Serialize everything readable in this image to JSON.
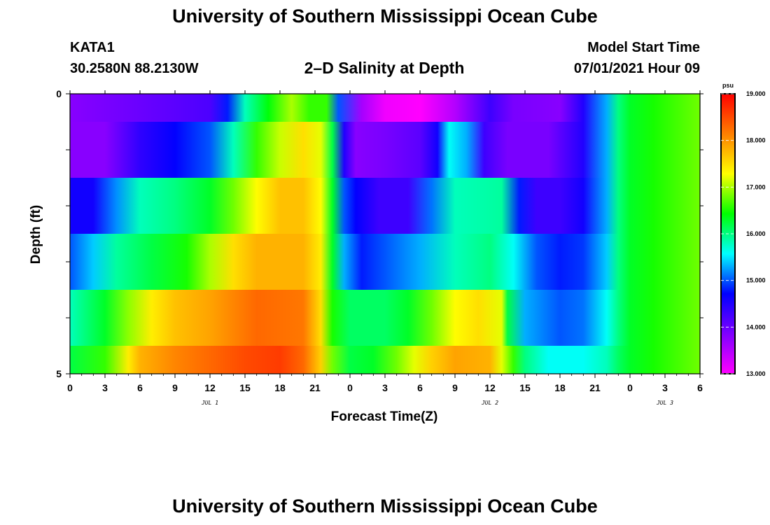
{
  "page": {
    "title_top": "University of Southern Mississippi Ocean Cube",
    "title_bottom": "University of Southern Mississippi Ocean Cube",
    "station": "KATA1",
    "coordinates": "30.2580N  88.2130W",
    "plot_title": "2–D Salinity at Depth",
    "model_start_label": "Model Start Time",
    "model_start_value": "07/01/2021 Hour 09"
  },
  "chart_data": {
    "type": "heatmap",
    "title": "2–D Salinity at Depth",
    "xlabel": "Forecast Time(Z)",
    "ylabel": "Depth (ft)",
    "x_tick_labels": [
      "0",
      "3",
      "6",
      "9",
      "12",
      "15",
      "18",
      "21",
      "0",
      "3",
      "6",
      "9",
      "12",
      "15",
      "18",
      "21",
      "0",
      "3",
      "6"
    ],
    "date_labels": [
      {
        "label": "JUL 1",
        "hour": 12
      },
      {
        "label": "JUL 2",
        "hour": 36
      },
      {
        "label": "JUL 3",
        "hour": 51
      }
    ],
    "x_range_hours": [
      0,
      54
    ],
    "y_tick_labels": [
      "0",
      "5"
    ],
    "ylim": [
      0,
      5
    ],
    "y_inverted": true,
    "colorbar": {
      "unit": "psu",
      "min": 13.0,
      "max": 19.0,
      "tick_labels": [
        "13.000",
        "14.000",
        "15.000",
        "16.000",
        "17.000",
        "18.000",
        "19.000"
      ],
      "colors": [
        "#ff00ff",
        "#7f00ff",
        "#0000ff",
        "#00ffff",
        "#00ff00",
        "#ffff00",
        "#ff7f00",
        "#ff0000"
      ]
    },
    "depth_layers": [
      0.5,
      1.5,
      2.5,
      3.5,
      4.5,
      5.0
    ],
    "series": [
      {
        "depth": 0.5,
        "knots": [
          [
            0,
            13.8
          ],
          [
            12,
            14.2
          ],
          [
            13.5,
            14.8
          ],
          [
            15,
            15.8
          ],
          [
            17,
            16.4
          ],
          [
            19,
            17.0
          ],
          [
            20.5,
            16.6
          ],
          [
            22,
            16.6
          ],
          [
            23,
            15.0
          ],
          [
            25,
            13.6
          ],
          [
            27,
            13.1
          ],
          [
            30,
            13.0
          ],
          [
            33,
            13.5
          ],
          [
            36,
            14.3
          ],
          [
            38,
            13.9
          ],
          [
            42,
            13.8
          ],
          [
            44,
            14.5
          ],
          [
            46,
            15.3
          ],
          [
            47,
            16.0
          ],
          [
            48,
            16.3
          ],
          [
            50,
            16.5
          ],
          [
            54,
            16.8
          ]
        ]
      },
      {
        "depth": 1.5,
        "knots": [
          [
            0,
            13.8
          ],
          [
            3,
            13.8
          ],
          [
            6,
            14.4
          ],
          [
            9,
            14.7
          ],
          [
            12,
            15.0
          ],
          [
            14,
            15.8
          ],
          [
            16,
            16.6
          ],
          [
            18,
            17.1
          ],
          [
            20,
            17.5
          ],
          [
            21.5,
            17.2
          ],
          [
            22.5,
            16.2
          ],
          [
            23.5,
            14.5
          ],
          [
            24.5,
            13.8
          ],
          [
            27,
            13.9
          ],
          [
            30,
            14.1
          ],
          [
            31.5,
            14.6
          ],
          [
            32.5,
            15.6
          ],
          [
            34,
            15.3
          ],
          [
            35.5,
            14.3
          ],
          [
            37.5,
            13.9
          ],
          [
            41,
            13.9
          ],
          [
            44,
            14.5
          ],
          [
            46,
            15.3
          ],
          [
            47,
            16.0
          ],
          [
            48,
            16.3
          ],
          [
            50,
            16.5
          ],
          [
            54,
            16.8
          ]
        ]
      },
      {
        "depth": 2.5,
        "knots": [
          [
            0,
            14.6
          ],
          [
            2,
            14.6
          ],
          [
            4,
            15.2
          ],
          [
            6,
            15.8
          ],
          [
            9,
            16.0
          ],
          [
            12,
            16.3
          ],
          [
            14,
            16.8
          ],
          [
            16,
            17.3
          ],
          [
            18,
            17.7
          ],
          [
            20,
            17.7
          ],
          [
            21.5,
            17.3
          ],
          [
            22.5,
            16.3
          ],
          [
            23.5,
            15.0
          ],
          [
            24.5,
            14.7
          ],
          [
            26.5,
            14.3
          ],
          [
            29,
            14.3
          ],
          [
            31,
            15.1
          ],
          [
            33,
            15.8
          ],
          [
            37,
            15.9
          ],
          [
            38.5,
            14.8
          ],
          [
            40,
            14.3
          ],
          [
            42,
            14.3
          ],
          [
            44,
            14.6
          ],
          [
            46,
            15.3
          ],
          [
            47,
            16.0
          ],
          [
            48,
            16.3
          ],
          [
            50,
            16.5
          ],
          [
            54,
            16.8
          ]
        ]
      },
      {
        "depth": 3.5,
        "knots": [
          [
            0,
            15.0
          ],
          [
            2,
            15.4
          ],
          [
            4,
            15.9
          ],
          [
            7,
            16.2
          ],
          [
            10,
            16.5
          ],
          [
            12,
            17.0
          ],
          [
            14,
            17.5
          ],
          [
            16,
            17.8
          ],
          [
            20,
            17.8
          ],
          [
            21.5,
            17.4
          ],
          [
            22.5,
            16.3
          ],
          [
            23.5,
            15.3
          ],
          [
            25,
            14.8
          ],
          [
            28,
            15.1
          ],
          [
            30,
            15.3
          ],
          [
            33,
            15.8
          ],
          [
            36,
            16.0
          ],
          [
            38,
            15.6
          ],
          [
            40,
            15.0
          ],
          [
            42,
            14.8
          ],
          [
            44,
            14.9
          ],
          [
            46,
            15.4
          ],
          [
            47,
            16.0
          ],
          [
            48,
            16.3
          ],
          [
            50,
            16.5
          ],
          [
            54,
            16.8
          ]
        ]
      },
      {
        "depth": 4.5,
        "knots": [
          [
            0,
            15.8
          ],
          [
            3,
            16.3
          ],
          [
            5,
            16.9
          ],
          [
            7,
            17.4
          ],
          [
            9,
            17.7
          ],
          [
            12,
            17.9
          ],
          [
            14,
            18.1
          ],
          [
            16,
            18.3
          ],
          [
            20,
            18.2
          ],
          [
            21.5,
            17.5
          ],
          [
            22.5,
            16.5
          ],
          [
            24,
            16.1
          ],
          [
            27,
            16.1
          ],
          [
            29,
            16.3
          ],
          [
            31,
            16.8
          ],
          [
            33,
            17.3
          ],
          [
            35,
            17.5
          ],
          [
            37,
            17.2
          ],
          [
            37.5,
            16.2
          ],
          [
            39,
            15.3
          ],
          [
            42,
            15.0
          ],
          [
            44,
            15.1
          ],
          [
            46,
            15.6
          ],
          [
            47,
            16.0
          ],
          [
            48,
            16.3
          ],
          [
            50,
            16.5
          ],
          [
            54,
            16.8
          ]
        ]
      },
      {
        "depth": 5.0,
        "knots": [
          [
            0,
            16.2
          ],
          [
            3,
            16.6
          ],
          [
            5,
            17.4
          ],
          [
            6,
            17.8
          ],
          [
            9,
            18.1
          ],
          [
            12,
            18.3
          ],
          [
            15,
            18.5
          ],
          [
            18,
            18.6
          ],
          [
            20,
            18.3
          ],
          [
            21.5,
            17.6
          ],
          [
            22.5,
            16.8
          ],
          [
            24,
            16.2
          ],
          [
            26,
            16.3
          ],
          [
            28,
            16.8
          ],
          [
            29.5,
            17.2
          ],
          [
            31,
            17.6
          ],
          [
            33,
            17.9
          ],
          [
            36,
            17.8
          ],
          [
            37,
            17.2
          ],
          [
            38,
            16.6
          ],
          [
            39,
            16.0
          ],
          [
            41,
            15.6
          ],
          [
            44,
            15.6
          ],
          [
            46,
            15.8
          ],
          [
            47,
            16.1
          ],
          [
            48,
            16.3
          ],
          [
            50,
            16.5
          ],
          [
            54,
            16.8
          ]
        ]
      }
    ]
  }
}
